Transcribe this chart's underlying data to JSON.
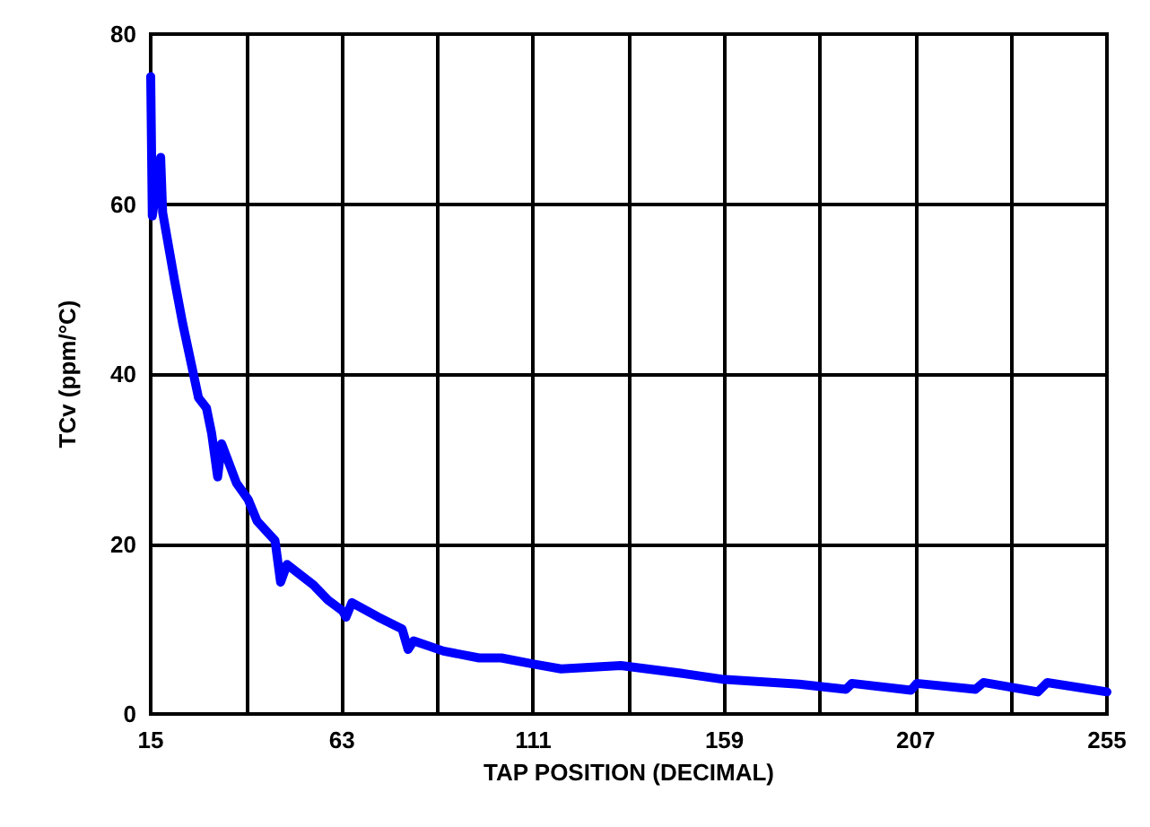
{
  "chart_data": {
    "type": "line",
    "xlabel": "TAP POSITION (DECIMAL)",
    "ylabel": "TCv (ppm/°C)",
    "xlim": [
      15,
      255
    ],
    "ylim": [
      0,
      80
    ],
    "xticks": [
      15,
      {
        "value": 39,
        "label": null
      },
      63,
      {
        "value": 87,
        "label": null
      },
      111,
      {
        "value": 135,
        "label": null
      },
      159,
      {
        "value": 183,
        "label": null
      },
      207,
      {
        "value": 231,
        "label": null
      },
      255
    ],
    "yticks": [
      0,
      20,
      40,
      60,
      80
    ],
    "grid": true,
    "marker": "none",
    "line_style": "solid",
    "series": [
      {
        "color": "#0000ff",
        "x": [
          15,
          15.4,
          17.5,
          18,
          21,
          23,
          27,
          29,
          30.3,
          31.8,
          32.8,
          36.5,
          39.5,
          41.7,
          46.2,
          47.6,
          49.2,
          55.8,
          59.5,
          63.2,
          64,
          65.5,
          72.1,
          78.1,
          79.6,
          81,
          88.5,
          97.4,
          103,
          110.8,
          118,
          133,
          148,
          158.3,
          177.7,
          189.5,
          191,
          205.8,
          207.3,
          222,
          224,
          237.7,
          240,
          255
        ],
        "values": [
          75,
          58.6,
          65.5,
          59,
          51,
          46,
          37.2,
          36,
          33,
          27.9,
          31.8,
          27.2,
          25.2,
          22.7,
          20.4,
          15.5,
          17.6,
          15.2,
          13.4,
          12.1,
          11.4,
          13.1,
          11.4,
          10,
          7.6,
          8.6,
          7.4,
          6.6,
          6.6,
          5.9,
          5.3,
          5.7,
          4.8,
          4.1,
          3.5,
          2.9,
          3.6,
          2.8,
          3.6,
          2.9,
          3.7,
          2.6,
          3.7,
          2.6
        ]
      }
    ]
  }
}
